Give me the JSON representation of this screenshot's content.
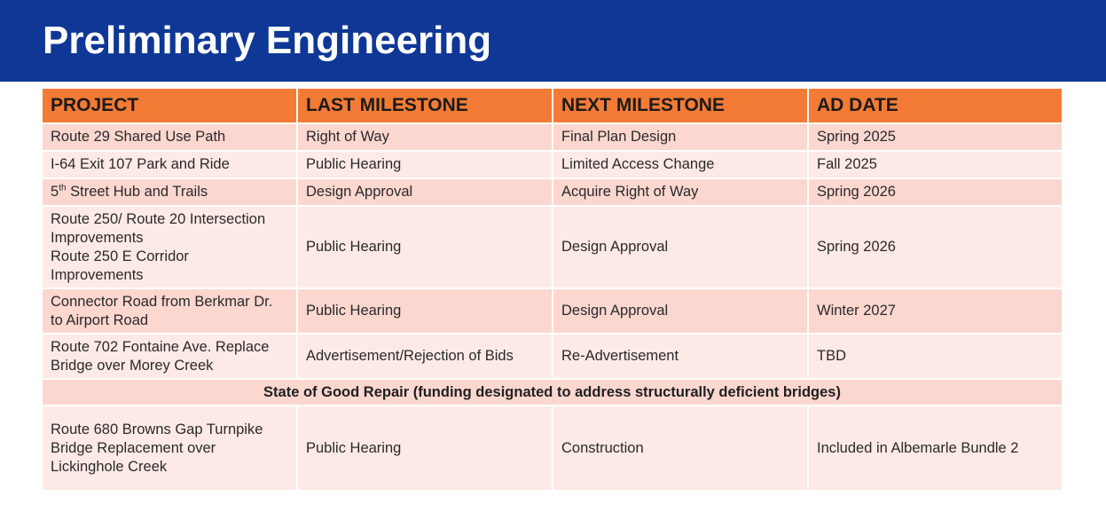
{
  "page": {
    "title": "Preliminary Engineering"
  },
  "table": {
    "headers": [
      "PROJECT",
      "LAST MILESTONE",
      "NEXT MILESTONE",
      "AD DATE"
    ],
    "rows": [
      {
        "project": [
          "Route 29 Shared Use Path"
        ],
        "last": "Right of Way",
        "next": "Final Plan Design",
        "ad": "Spring 2025"
      },
      {
        "project": [
          "I-64 Exit 107 Park and Ride"
        ],
        "last": "Public Hearing",
        "next": "Limited Access Change",
        "ad": "Fall 2025"
      },
      {
        "project_prefix": "5",
        "project_sup": "th",
        "project_suffix": " Street Hub and Trails",
        "last": "Design Approval",
        "next": "Acquire Right of Way",
        "ad": "Spring 2026"
      },
      {
        "project": [
          "Route 250/ Route 20 Intersection",
          "Improvements",
          "Route 250 E Corridor",
          "Improvements"
        ],
        "last": "Public Hearing",
        "next": "Design Approval",
        "ad": "Spring 2026"
      },
      {
        "project": [
          "Connector Road from Berkmar Dr.",
          "to Airport Road"
        ],
        "last": "Public Hearing",
        "next": "Design Approval",
        "ad": "Winter 2027"
      },
      {
        "project": [
          "Route 702 Fontaine Ave. Replace",
          "Bridge over Morey Creek"
        ],
        "last": "Advertisement/Rejection of Bids",
        "next": "Re-Advertisement",
        "ad": "TBD"
      }
    ],
    "section_label": "State of Good Repair (funding designated to address structurally deficient bridges)",
    "section_rows": [
      {
        "project": [
          "Route 680 Browns Gap Turnpike",
          "Bridge Replacement over",
          "Lickinghole Creek"
        ],
        "last": "Public Hearing",
        "next": "Construction",
        "ad": "Included in Albemarle Bundle 2"
      }
    ]
  }
}
